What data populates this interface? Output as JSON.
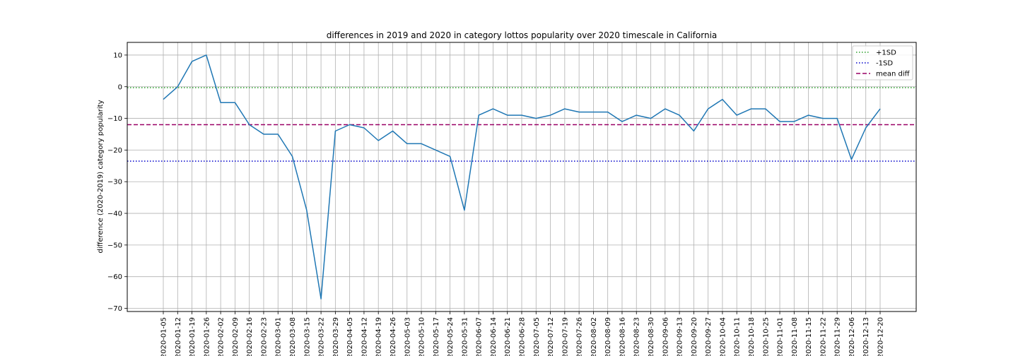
{
  "chart_data": {
    "type": "line",
    "title": "differences in 2019 and 2020 in category lottos popularity over 2020 timescale in California",
    "xlabel": "",
    "ylabel": "difference (2020-2019) category popularity",
    "ylim": [
      -71,
      14
    ],
    "yticks": [
      10,
      0,
      -10,
      -20,
      -30,
      -40,
      -50,
      -60,
      -70
    ],
    "ytick_labels": [
      "10",
      "0",
      "−10",
      "−20",
      "−30",
      "−40",
      "−50",
      "−60",
      "−70"
    ],
    "grid": true,
    "legend_position": "top-right",
    "x": [
      "2020-01-05",
      "2020-01-12",
      "2020-01-19",
      "2020-01-26",
      "2020-02-02",
      "2020-02-09",
      "2020-02-16",
      "2020-02-23",
      "2020-03-01",
      "2020-03-08",
      "2020-03-15",
      "2020-03-22",
      "2020-03-29",
      "2020-04-05",
      "2020-04-12",
      "2020-04-19",
      "2020-04-26",
      "2020-05-03",
      "2020-05-10",
      "2020-05-17",
      "2020-05-24",
      "2020-05-31",
      "2020-06-07",
      "2020-06-14",
      "2020-06-21",
      "2020-06-28",
      "2020-07-05",
      "2020-07-12",
      "2020-07-19",
      "2020-07-26",
      "2020-08-02",
      "2020-08-09",
      "2020-08-16",
      "2020-08-23",
      "2020-08-30",
      "2020-09-06",
      "2020-09-13",
      "2020-09-20",
      "2020-09-27",
      "2020-10-04",
      "2020-10-11",
      "2020-10-18",
      "2020-10-25",
      "2020-11-01",
      "2020-11-08",
      "2020-11-15",
      "2020-11-22",
      "2020-11-29",
      "2020-12-06",
      "2020-12-13",
      "2020-12-20"
    ],
    "series": [
      {
        "values": [
          -4,
          0,
          8,
          10,
          -5,
          -5,
          -12,
          -15,
          -15,
          -22,
          -39,
          -67,
          -14,
          -12,
          -13,
          -17,
          -14,
          -18,
          -18,
          -20,
          -22,
          -39,
          -9,
          -7,
          -9,
          -9,
          -10,
          -9,
          -7,
          -8,
          -8,
          -8,
          -11,
          -9,
          -10,
          -7,
          -9,
          -14,
          -7,
          -4,
          -9,
          -7,
          -7,
          -11,
          -11,
          -9,
          -10,
          -10,
          -23,
          -13,
          -7
        ],
        "color": "#1f77b4"
      }
    ],
    "reference_lines": [
      {
        "name": "+1SD",
        "y": -0.3,
        "color": "#2ca02c",
        "style": "dotted"
      },
      {
        "name": "-1SD",
        "y": -23.5,
        "color": "#0000cc",
        "style": "dotted"
      },
      {
        "name": "mean diff",
        "y": -12,
        "color": "#990066",
        "style": "dashed"
      }
    ]
  }
}
